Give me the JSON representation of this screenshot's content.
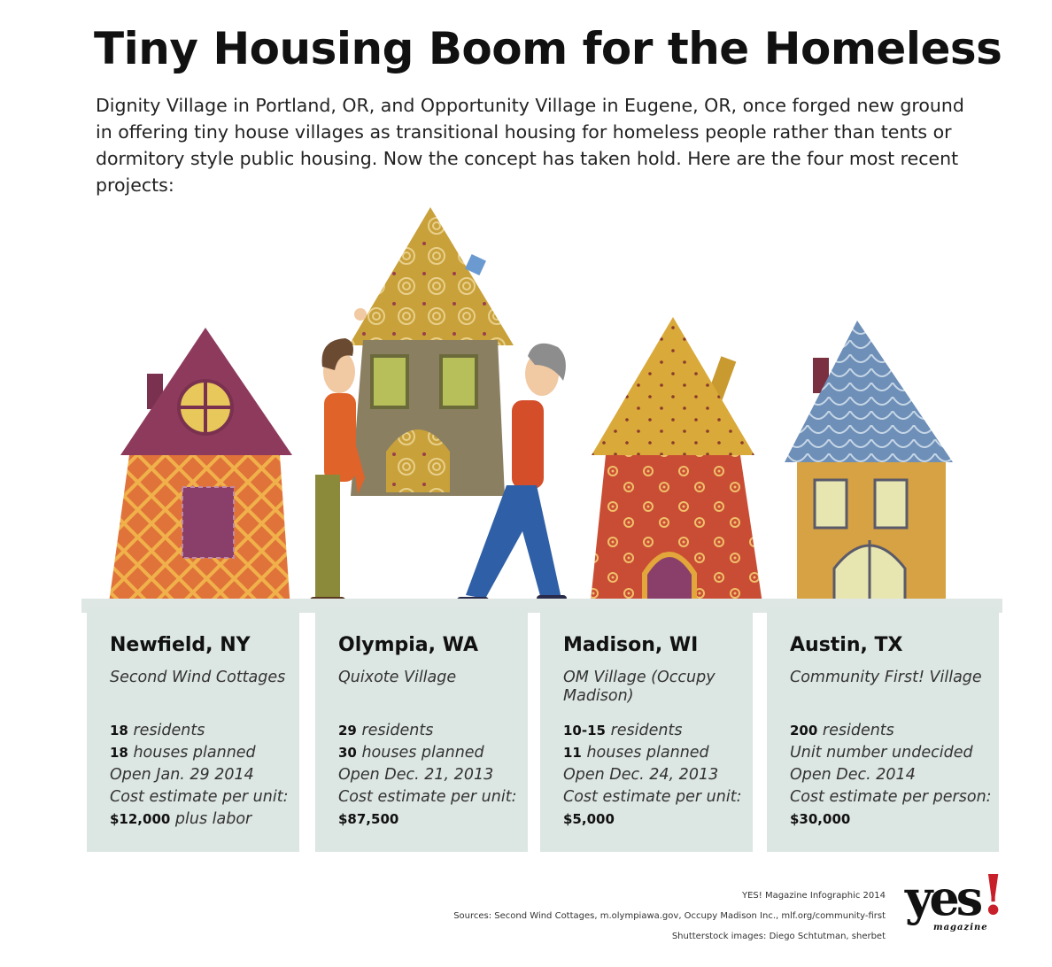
{
  "title": "Tiny Housing Boom for the Homeless",
  "intro": "Dignity Village in Portland, OR, and Opportunity Village in Eugene, OR, once forged new ground in offering tiny house villages as transitional housing for homeless people rather than tents or dormitory style public housing. Now the concept has taken hold. Here are the four most recent projects:",
  "cards": [
    {
      "city": "Newfield, NY",
      "village": "Second Wind Cottages",
      "residents_num": "18",
      "residents_label": "residents",
      "houses_num": "18",
      "houses_label": "houses planned",
      "open": "Open Jan. 29 2014",
      "cost_label": "Cost estimate per unit:",
      "cost_value": "$12,000",
      "cost_suffix": "plus labor"
    },
    {
      "city": "Olympia, WA",
      "village": "Quixote Village",
      "residents_num": "29",
      "residents_label": "residents",
      "houses_num": "30",
      "houses_label": "houses planned",
      "open": "Open Dec. 21, 2013",
      "cost_label": "Cost estimate per unit:",
      "cost_value": "$87,500",
      "cost_suffix": ""
    },
    {
      "city": "Madison, WI",
      "village": "OM Village (Occupy Madison)",
      "residents_num": "10-15",
      "residents_label": "residents",
      "houses_num": "11",
      "houses_label": "houses planned",
      "open": "Open Dec. 24, 2013",
      "cost_label": "Cost estimate per unit:",
      "cost_value": "$5,000",
      "cost_suffix": ""
    },
    {
      "city": "Austin, TX",
      "village": "Community First! Village",
      "residents_num": "200",
      "residents_label": "residents",
      "houses_num": "",
      "houses_label": "Unit number undecided",
      "open": "Open Dec. 2014",
      "cost_label": "Cost estimate per person:",
      "cost_value": "$30,000",
      "cost_suffix": ""
    }
  ],
  "footer": {
    "credit": "YES! Magazine Infographic 2014",
    "sources": "Sources: Second Wind Cottages, m.olympiawa.gov, Occupy Madison Inc., mlf.org/community-first",
    "images": "Shutterstock images: Diego Schtutman, sherbet"
  },
  "logo": {
    "word": "yes",
    "mark": "!",
    "sub": "magazine"
  },
  "colors": {
    "card_bg": "#dce6e2",
    "house1_roof": "#8e3a5c",
    "house1_wall": "#e0733a",
    "house2_roof": "#c9a13a",
    "house2_wall": "#8b7f62",
    "house3_roof": "#d9a93a",
    "house3_wall": "#c94d34",
    "house4_roof": "#6d8fb8",
    "house4_wall": "#d7a243",
    "logo_accent": "#c8202a"
  }
}
